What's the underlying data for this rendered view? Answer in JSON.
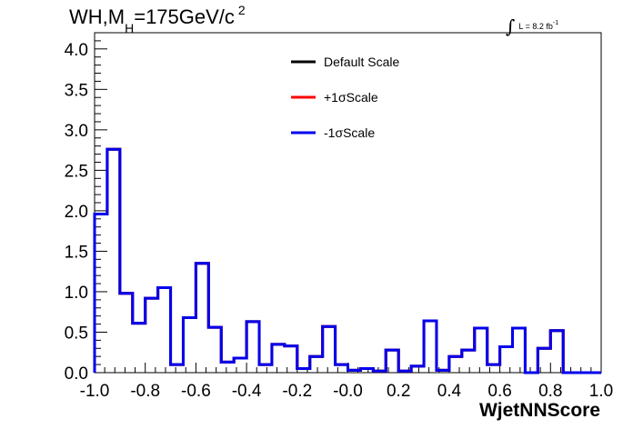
{
  "title": {
    "prefix": "WH,M",
    "subscript": "H",
    "value": "=175GeV/c",
    "superscript": "2"
  },
  "lumi": {
    "integral": "∫",
    "text": "L = 8.2 fb",
    "superscript": "-1"
  },
  "chart_data": {
    "type": "line",
    "subtype": "step-histogram",
    "xlabel": "WjetNNScore",
    "ylabel": "",
    "xlim": [
      -1.0,
      1.0
    ],
    "ylim": [
      0.0,
      4.2
    ],
    "x_ticks": [
      "-1.0",
      "-0.8",
      "-0.6",
      "-0.4",
      "-0.2",
      "-0.0",
      "0.2",
      "0.4",
      "0.6",
      "0.8",
      "1.0"
    ],
    "y_ticks": [
      "0.0",
      "0.5",
      "1.0",
      "1.5",
      "2.0",
      "2.5",
      "3.0",
      "3.5",
      "4.0"
    ],
    "bin_edges": [
      -1.0,
      -0.95,
      -0.9,
      -0.85,
      -0.8,
      -0.75,
      -0.7,
      -0.65,
      -0.6,
      -0.55,
      -0.5,
      -0.45,
      -0.4,
      -0.35,
      -0.3,
      -0.25,
      -0.2,
      -0.15,
      -0.1,
      -0.05,
      0.0,
      0.05,
      0.1,
      0.15,
      0.2,
      0.25,
      0.3,
      0.35,
      0.4,
      0.45,
      0.5,
      0.55,
      0.6,
      0.65,
      0.7,
      0.75,
      0.8,
      0.85,
      0.9,
      0.95,
      1.0
    ],
    "legend_position": "top-center",
    "series": [
      {
        "name": "Default Scale",
        "color": "#000000",
        "values": [
          1.96,
          2.76,
          0.98,
          0.61,
          0.92,
          1.05,
          0.1,
          0.68,
          1.35,
          0.56,
          0.13,
          0.18,
          0.63,
          0.1,
          0.35,
          0.33,
          0.05,
          0.2,
          0.57,
          0.1,
          0.03,
          0.05,
          0.02,
          0.28,
          0.02,
          0.08,
          0.64,
          0.03,
          0.2,
          0.28,
          0.55,
          0.1,
          0.32,
          0.55,
          0.0,
          0.3,
          0.52,
          0.0,
          0.0,
          0.0
        ]
      },
      {
        "name": "+1σScale",
        "color": "#ff0000",
        "values": [
          1.96,
          2.76,
          0.98,
          0.61,
          0.92,
          1.05,
          0.1,
          0.68,
          1.35,
          0.56,
          0.13,
          0.18,
          0.63,
          0.1,
          0.35,
          0.33,
          0.05,
          0.2,
          0.57,
          0.1,
          0.03,
          0.05,
          0.02,
          0.28,
          0.02,
          0.08,
          0.64,
          0.03,
          0.2,
          0.28,
          0.55,
          0.1,
          0.32,
          0.55,
          0.0,
          0.3,
          0.52,
          0.0,
          0.0,
          0.0
        ]
      },
      {
        "name": "-1σScale",
        "color": "#0000ee",
        "values": [
          1.96,
          2.76,
          0.98,
          0.61,
          0.92,
          1.05,
          0.1,
          0.68,
          1.35,
          0.56,
          0.13,
          0.18,
          0.63,
          0.1,
          0.35,
          0.33,
          0.05,
          0.2,
          0.57,
          0.1,
          0.03,
          0.05,
          0.02,
          0.28,
          0.02,
          0.08,
          0.64,
          0.03,
          0.2,
          0.28,
          0.55,
          0.1,
          0.32,
          0.55,
          0.0,
          0.3,
          0.52,
          0.0,
          0.0,
          0.0
        ]
      }
    ]
  }
}
